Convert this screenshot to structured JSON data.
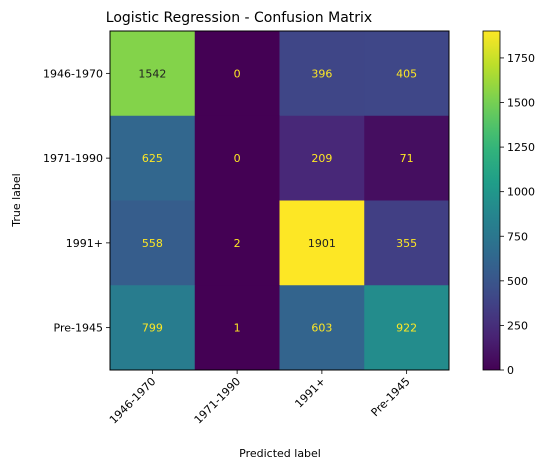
{
  "chart_data": {
    "type": "heatmap",
    "title": "Logistic Regression - Confusion Matrix",
    "xlabel": "Predicted label",
    "ylabel": "True label",
    "x_categories": [
      "1946-1970",
      "1971-1990",
      "1991+",
      "Pre-1945"
    ],
    "y_categories": [
      "1946-1970",
      "1971-1990",
      "1991+",
      "Pre-1945"
    ],
    "values": [
      [
        1542,
        0,
        396,
        405
      ],
      [
        625,
        0,
        209,
        71
      ],
      [
        558,
        2,
        1901,
        355
      ],
      [
        799,
        1,
        603,
        922
      ]
    ],
    "colormap": "viridis",
    "colorbar": {
      "min": 0,
      "max": 1901,
      "ticks": [
        0,
        250,
        500,
        750,
        1000,
        1250,
        1500,
        1750
      ]
    },
    "text_color_dark": "#222222",
    "text_color_light": "#fde725"
  }
}
